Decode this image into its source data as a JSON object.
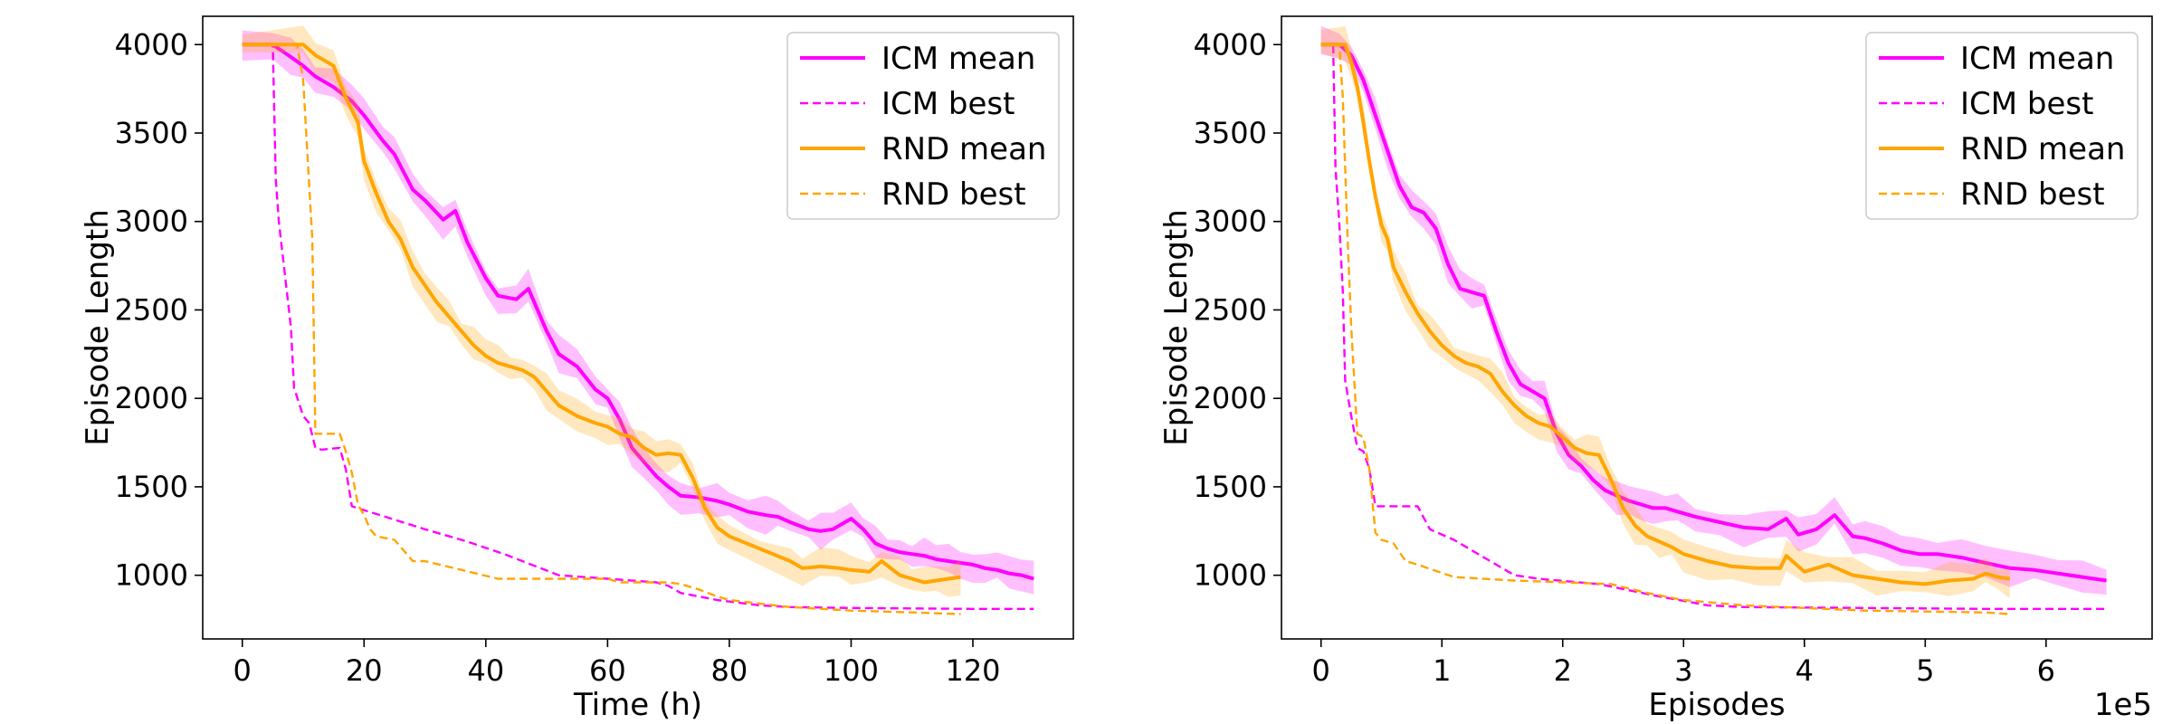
{
  "chart_data": [
    {
      "type": "line",
      "xlabel": "Time (h)",
      "ylabel": "Episode Length",
      "xlim": [
        -6.5,
        136.5
      ],
      "ylim": [
        640,
        4160
      ],
      "xticks": [
        0,
        20,
        40,
        60,
        80,
        100,
        120
      ],
      "xtick_labels": [
        "0",
        "20",
        "40",
        "60",
        "80",
        "100",
        "120"
      ],
      "yticks": [
        1000,
        1500,
        2000,
        2500,
        3000,
        3500,
        4000
      ],
      "ytick_labels": [
        "1000",
        "1500",
        "2000",
        "2500",
        "3000",
        "3500",
        "4000"
      ],
      "offset_text": "",
      "grid": false,
      "legend_position": "top-right",
      "series": [
        {
          "name": "ICM mean",
          "color": "#ff00ff",
          "style": "solid",
          "band": true,
          "x": [
            0,
            5,
            8,
            10,
            12,
            15,
            18,
            20,
            23,
            25,
            28,
            30,
            33,
            35,
            37,
            40,
            42,
            45,
            47,
            50,
            52,
            55,
            58,
            60,
            62,
            64,
            66,
            68,
            70,
            72,
            75,
            78,
            80,
            83,
            86,
            88,
            90,
            93,
            95,
            97,
            100,
            102,
            104,
            106,
            108,
            110,
            112,
            114,
            116,
            118,
            120,
            122,
            124,
            126,
            128,
            130
          ],
          "y": [
            4000,
            4000,
            3930,
            3880,
            3820,
            3760,
            3680,
            3600,
            3460,
            3380,
            3180,
            3120,
            3010,
            3060,
            2880,
            2680,
            2580,
            2560,
            2620,
            2380,
            2250,
            2180,
            2050,
            2000,
            1880,
            1720,
            1640,
            1560,
            1500,
            1450,
            1440,
            1420,
            1400,
            1360,
            1340,
            1330,
            1300,
            1260,
            1250,
            1260,
            1320,
            1260,
            1180,
            1150,
            1130,
            1120,
            1110,
            1090,
            1080,
            1070,
            1060,
            1040,
            1030,
            1010,
            1000,
            980
          ]
        },
        {
          "name": "ICM best",
          "color": "#ff00ff",
          "style": "dashed",
          "band": false,
          "x": [
            0,
            5,
            5.5,
            6,
            7,
            8,
            8.5,
            10,
            11,
            12,
            13,
            16,
            17,
            18,
            30,
            37,
            43,
            52,
            60,
            68,
            70,
            72,
            75,
            78,
            85,
            90,
            100,
            120,
            130
          ],
          "y": [
            4000,
            4000,
            3240,
            3000,
            2700,
            2400,
            2060,
            1900,
            1860,
            1720,
            1710,
            1720,
            1600,
            1390,
            1260,
            1190,
            1120,
            1000,
            980,
            960,
            940,
            900,
            880,
            860,
            830,
            820,
            815,
            810,
            810
          ]
        },
        {
          "name": "RND mean",
          "color": "#ffa500",
          "style": "solid",
          "band": true,
          "x": [
            0,
            10,
            12,
            15,
            17,
            19,
            20,
            22,
            24,
            26,
            28,
            30,
            32,
            34,
            36,
            38,
            40,
            42,
            44,
            46,
            48,
            50,
            52,
            55,
            58,
            60,
            62,
            64,
            66,
            68,
            70,
            72,
            74,
            76,
            78,
            80,
            85,
            90,
            92,
            95,
            98,
            100,
            103,
            105,
            108,
            110,
            112,
            114,
            116,
            118
          ],
          "y": [
            4000,
            4000,
            3940,
            3880,
            3700,
            3560,
            3340,
            3160,
            3000,
            2900,
            2740,
            2640,
            2540,
            2460,
            2380,
            2300,
            2240,
            2200,
            2180,
            2160,
            2120,
            2040,
            1960,
            1900,
            1860,
            1840,
            1800,
            1780,
            1720,
            1680,
            1690,
            1680,
            1550,
            1380,
            1270,
            1220,
            1150,
            1080,
            1040,
            1050,
            1040,
            1030,
            1020,
            1080,
            1000,
            980,
            960,
            970,
            980,
            990
          ]
        },
        {
          "name": "RND best",
          "color": "#ffa500",
          "style": "dashed",
          "band": false,
          "x": [
            0,
            9,
            10,
            11,
            11.5,
            12,
            13,
            16,
            17,
            18,
            19,
            20,
            21,
            22,
            25,
            28,
            30,
            42,
            60,
            62,
            70,
            72,
            75,
            78,
            80,
            90,
            100,
            110,
            118
          ],
          "y": [
            4000,
            4000,
            3800,
            3200,
            2900,
            1800,
            1800,
            1800,
            1700,
            1580,
            1400,
            1340,
            1260,
            1220,
            1200,
            1080,
            1080,
            980,
            980,
            960,
            960,
            950,
            920,
            880,
            860,
            820,
            800,
            790,
            780
          ]
        }
      ]
    },
    {
      "type": "line",
      "xlabel": "Episodes",
      "ylabel": "Episode Length",
      "xlim": [
        -0.3275,
        6.8775
      ],
      "ylim": [
        640,
        4160
      ],
      "xticks": [
        0,
        1,
        2,
        3,
        4,
        5,
        6
      ],
      "xtick_labels": [
        "0",
        "1",
        "2",
        "3",
        "4",
        "5",
        "6"
      ],
      "yticks": [
        1000,
        1500,
        2000,
        2500,
        3000,
        3500,
        4000
      ],
      "ytick_labels": [
        "1000",
        "1500",
        "2000",
        "2500",
        "3000",
        "3500",
        "4000"
      ],
      "offset_text": "1e5",
      "grid": false,
      "legend_position": "top-right",
      "series": [
        {
          "name": "ICM mean",
          "color": "#ff00ff",
          "style": "solid",
          "band": true,
          "x": [
            0,
            0.15,
            0.25,
            0.35,
            0.45,
            0.55,
            0.65,
            0.75,
            0.85,
            0.95,
            1.05,
            1.15,
            1.25,
            1.35,
            1.45,
            1.55,
            1.65,
            1.75,
            1.85,
            1.95,
            2.05,
            2.15,
            2.25,
            2.35,
            2.45,
            2.55,
            2.65,
            2.75,
            2.85,
            2.95,
            3.1,
            3.3,
            3.5,
            3.7,
            3.85,
            3.95,
            4.1,
            4.25,
            4.4,
            4.5,
            4.65,
            4.8,
            4.95,
            5.1,
            5.3,
            5.5,
            5.7,
            5.9,
            6.1,
            6.3,
            6.5
          ],
          "y": [
            4000,
            4000,
            3940,
            3800,
            3600,
            3400,
            3200,
            3080,
            3050,
            2960,
            2760,
            2620,
            2600,
            2580,
            2380,
            2200,
            2080,
            2040,
            2000,
            1800,
            1680,
            1620,
            1540,
            1480,
            1450,
            1420,
            1400,
            1380,
            1380,
            1360,
            1330,
            1300,
            1270,
            1260,
            1320,
            1230,
            1260,
            1340,
            1220,
            1210,
            1180,
            1140,
            1120,
            1120,
            1100,
            1070,
            1040,
            1030,
            1010,
            990,
            970
          ]
        },
        {
          "name": "ICM best",
          "color": "#ff00ff",
          "style": "dashed",
          "band": false,
          "x": [
            0,
            0.1,
            0.12,
            0.15,
            0.18,
            0.2,
            0.25,
            0.3,
            0.35,
            0.4,
            0.45,
            0.8,
            0.9,
            1.1,
            1.3,
            1.6,
            1.8,
            2.3,
            2.8,
            3.2,
            3.5,
            4.5,
            5.5,
            6.5
          ],
          "y": [
            4000,
            4000,
            3300,
            3000,
            2600,
            2100,
            1900,
            1720,
            1700,
            1600,
            1390,
            1390,
            1260,
            1200,
            1120,
            1000,
            980,
            950,
            880,
            830,
            820,
            815,
            810,
            810
          ]
        },
        {
          "name": "RND mean",
          "color": "#ffa500",
          "style": "solid",
          "band": true,
          "x": [
            0,
            0.2,
            0.25,
            0.3,
            0.35,
            0.4,
            0.45,
            0.5,
            0.55,
            0.6,
            0.7,
            0.8,
            0.9,
            1.0,
            1.1,
            1.2,
            1.3,
            1.4,
            1.5,
            1.6,
            1.7,
            1.8,
            1.9,
            2.0,
            2.1,
            2.2,
            2.3,
            2.4,
            2.5,
            2.6,
            2.7,
            2.8,
            2.9,
            3.0,
            3.2,
            3.4,
            3.6,
            3.8,
            3.85,
            4.0,
            4.2,
            4.4,
            4.6,
            4.8,
            5.0,
            5.2,
            5.4,
            5.5,
            5.6,
            5.7
          ],
          "y": [
            4000,
            4000,
            3900,
            3760,
            3560,
            3340,
            3140,
            2980,
            2900,
            2740,
            2600,
            2480,
            2380,
            2300,
            2240,
            2200,
            2180,
            2140,
            2040,
            1960,
            1900,
            1860,
            1840,
            1780,
            1720,
            1690,
            1680,
            1540,
            1380,
            1280,
            1220,
            1190,
            1160,
            1120,
            1080,
            1050,
            1040,
            1040,
            1110,
            1020,
            1060,
            1000,
            980,
            960,
            950,
            970,
            980,
            1010,
            990,
            980
          ]
        },
        {
          "name": "RND best",
          "color": "#ffa500",
          "style": "dashed",
          "band": false,
          "x": [
            0,
            0.15,
            0.18,
            0.2,
            0.22,
            0.25,
            0.3,
            0.35,
            0.4,
            0.45,
            0.5,
            0.6,
            0.7,
            0.8,
            1.1,
            1.6,
            2.4,
            2.7,
            3.0,
            3.5,
            4.5,
            5.5,
            5.7
          ],
          "y": [
            4000,
            4000,
            3700,
            3300,
            2900,
            2400,
            1800,
            1780,
            1600,
            1240,
            1200,
            1180,
            1080,
            1060,
            990,
            970,
            950,
            900,
            860,
            830,
            800,
            790,
            780
          ]
        }
      ]
    }
  ]
}
